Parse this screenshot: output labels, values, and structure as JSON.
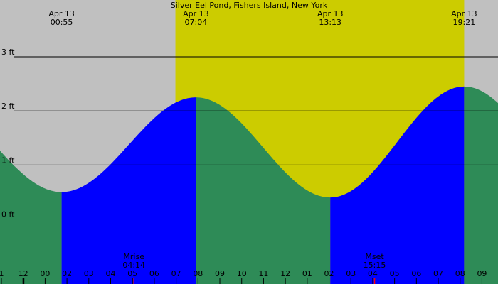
{
  "chart_data": {
    "type": "area",
    "title": "Silver Eel Pond, Fishers Island, New York",
    "y_unit": "ft",
    "y_ticks": [
      {
        "value": 0,
        "label": "0 ft"
      },
      {
        "value": 1,
        "label": "1 ft"
      },
      {
        "value": 2,
        "label": "2 ft"
      },
      {
        "value": 3,
        "label": "3 ft"
      }
    ],
    "x_ticks": [
      "1",
      "12",
      "00",
      "02",
      "03",
      "04",
      "05",
      "06",
      "07",
      "08",
      "09",
      "10",
      "11",
      "12",
      "01",
      "02",
      "03",
      "04",
      "05",
      "06",
      "07",
      "08",
      "09"
    ],
    "tide_extremes": [
      {
        "date": "Apr 13",
        "time": "00:55",
        "type": "low",
        "hour": 0.92,
        "height_ft": 0.5
      },
      {
        "date": "Apr 13",
        "time": "07:04",
        "type": "high",
        "hour": 7.07,
        "height_ft": 2.25
      },
      {
        "date": "Apr 13",
        "time": "13:13",
        "type": "low",
        "hour": 13.22,
        "height_ft": 0.4
      },
      {
        "date": "Apr 13",
        "time": "19:21",
        "type": "high",
        "hour": 19.35,
        "height_ft": 2.45
      }
    ],
    "x_range_hours": [
      -1.9,
      20.9
    ],
    "y_range_ft": [
      -1.2,
      4.05
    ],
    "daylight_hours": [
      6.13,
      19.35
    ],
    "moon_events": [
      {
        "label": "Mrise",
        "time": "04:14",
        "hour": 4.23
      },
      {
        "label": "Mset",
        "time": "15:15",
        "hour": 15.25
      }
    ],
    "grid": true,
    "colors": {
      "night": "#c0c0c0",
      "day": "#cccc00",
      "rising": "#0000ff",
      "falling": "#2e8b57",
      "moon_tick": "#ff0000"
    }
  }
}
